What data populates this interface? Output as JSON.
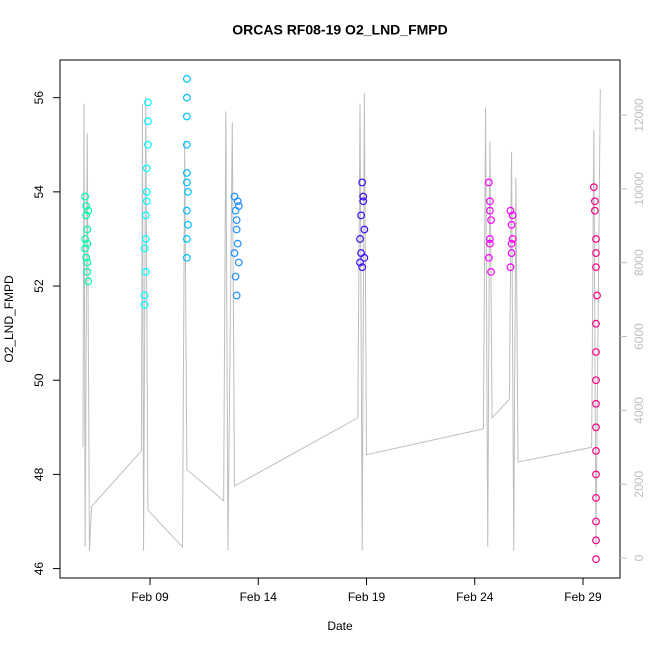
{
  "chart_data": {
    "type": "scatter",
    "title": "ORCAS RF08-19 O2_LND_FMPD",
    "x_label": "Date",
    "y_label": "O2_LND_FMPD",
    "xlim": [
      4.84,
      30.71
    ],
    "xticks": [
      {
        "value": 9,
        "label": "Feb 09"
      },
      {
        "value": 14,
        "label": "Feb 14"
      },
      {
        "value": 19,
        "label": "Feb 19"
      },
      {
        "value": 24,
        "label": "Feb 24"
      },
      {
        "value": 29,
        "label": "Feb 29"
      }
    ],
    "ylim": [
      45.8,
      56.8
    ],
    "yticks": [
      46,
      48,
      50,
      52,
      54,
      56
    ],
    "y2lim": [
      -540,
      13490
    ],
    "y2ticks": [
      0,
      2000,
      4000,
      6000,
      8000,
      10000,
      12000
    ],
    "series": [
      {
        "type": "line",
        "axis": "y2",
        "color": "#bebebe",
        "x": [
          5.9,
          5.95,
          6.0,
          6.1,
          6.2,
          6.3,
          8.6,
          8.65,
          8.7,
          8.8,
          8.9,
          10.5,
          10.6,
          10.7,
          12.4,
          12.5,
          12.6,
          12.8,
          12.9,
          18.6,
          18.7,
          18.8,
          18.9,
          19.0,
          24.4,
          24.5,
          24.6,
          24.7,
          24.8,
          25.6,
          25.7,
          25.8,
          25.9,
          26.0,
          29.4,
          29.5,
          29.6,
          29.8
        ],
        "values": [
          3000,
          12300,
          300,
          11500,
          200,
          1400,
          2900,
          12300,
          200,
          12500,
          1300,
          300,
          11300,
          2400,
          1550,
          12100,
          200,
          11800,
          1950,
          3800,
          12300,
          200,
          12600,
          2800,
          3500,
          12200,
          300,
          11300,
          3800,
          4300,
          11000,
          200,
          10300,
          2600,
          3000,
          11600,
          300,
          12700
        ]
      },
      {
        "type": "scatter",
        "color": "#00ffaa",
        "x": [
          6.0,
          6.05,
          6.1,
          6.0,
          6.1,
          6.15,
          6.05,
          6.1,
          6.0,
          6.15,
          6.1,
          6.05
        ],
        "values": [
          53.9,
          53.5,
          53.2,
          52.8,
          52.5,
          52.1,
          53.7,
          52.3,
          53.0,
          53.6,
          52.9,
          52.6
        ]
      },
      {
        "type": "scatter",
        "color": "#00ffff",
        "x": [
          8.75,
          8.8,
          8.75,
          8.8,
          8.85,
          8.85,
          8.9,
          8.9,
          8.9,
          8.75,
          8.8,
          8.85
        ],
        "values": [
          51.6,
          52.3,
          52.8,
          53.5,
          54.0,
          54.5,
          55.0,
          55.5,
          55.9,
          51.8,
          53.0,
          53.8
        ]
      },
      {
        "type": "scatter",
        "color": "#00bfff",
        "x": [
          10.7,
          10.7,
          10.7,
          10.7,
          10.7,
          10.75,
          10.7,
          10.7,
          10.7,
          10.75,
          10.7
        ],
        "values": [
          56.4,
          56.0,
          55.6,
          55.0,
          54.4,
          54.0,
          53.6,
          53.0,
          52.6,
          53.3,
          54.2
        ]
      },
      {
        "type": "scatter",
        "color": "#1e90ff",
        "x": [
          12.9,
          12.95,
          13.0,
          13.05,
          13.1,
          12.95,
          13.0,
          13.05,
          12.9,
          13.0,
          13.1
        ],
        "values": [
          53.9,
          53.6,
          53.2,
          52.9,
          52.5,
          52.2,
          51.8,
          53.8,
          52.7,
          53.4,
          53.7
        ]
      },
      {
        "type": "scatter",
        "color": "#4010ff",
        "x": [
          18.7,
          18.75,
          18.8,
          18.85,
          18.9,
          18.75,
          18.8,
          18.9,
          18.7,
          18.85
        ],
        "values": [
          53.0,
          53.5,
          54.2,
          53.8,
          53.2,
          52.7,
          52.4,
          52.6,
          52.5,
          53.9
        ]
      },
      {
        "type": "scatter",
        "color": "#ff00ff",
        "x": [
          24.65,
          24.7,
          24.75,
          24.7,
          24.65,
          24.75,
          24.7,
          24.7
        ],
        "values": [
          54.2,
          53.8,
          53.4,
          53.0,
          52.6,
          52.3,
          53.6,
          52.9
        ]
      },
      {
        "type": "scatter",
        "color": "#ff00ff",
        "x": [
          25.65,
          25.7,
          25.75,
          25.7,
          25.65,
          25.75,
          25.7
        ],
        "values": [
          53.6,
          53.3,
          53.0,
          52.7,
          52.4,
          53.5,
          52.9
        ]
      },
      {
        "type": "scatter",
        "color": "#ff0088",
        "x": [
          29.5,
          29.55,
          29.6,
          29.6,
          29.65,
          29.6,
          29.6,
          29.6,
          29.6,
          29.6,
          29.6,
          29.6,
          29.6,
          29.6,
          29.6,
          29.6,
          29.55,
          29.6
        ],
        "values": [
          54.1,
          53.6,
          53.0,
          52.4,
          51.8,
          51.2,
          50.6,
          50.0,
          49.5,
          49.0,
          48.5,
          48.0,
          47.5,
          47.0,
          46.6,
          46.2,
          53.8,
          52.7
        ]
      }
    ]
  }
}
